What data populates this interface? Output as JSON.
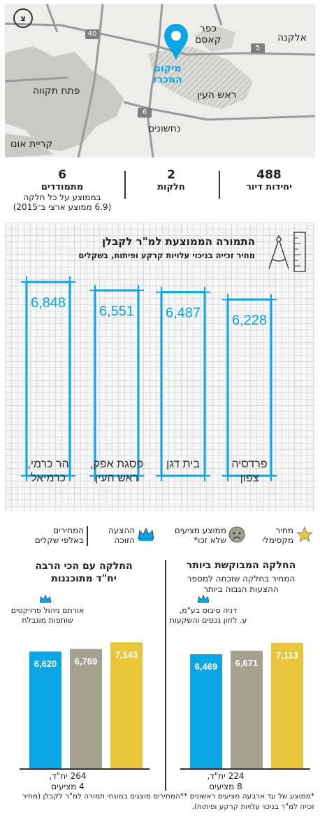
{
  "map": {
    "labels": {
      "kafr_qasim": "כפר\nקאסם",
      "elkana": "אלקנה",
      "sale_location": "מיקום\nהמכרז",
      "petah_tikva": "פתח תקווה",
      "rosh_haayin": "ראש העין",
      "nahshonim": "נחשונים",
      "kiryat_ono": "קריית אונו"
    },
    "roads": {
      "r40": "40",
      "r5": "5",
      "r6": "6"
    },
    "north_label": "צ",
    "colors": {
      "pin": "#0aa5e3",
      "urban": "#c9c9c5",
      "roads": "#9a9a9a"
    }
  },
  "stats": [
    {
      "value": "488",
      "label": "יחידות דיור",
      "sub": ""
    },
    {
      "value": "2",
      "label": "חלקות",
      "sub": ""
    },
    {
      "value": "6",
      "label": "מתמודדים",
      "sub": "בממוצע על כל חלקה",
      "sub2": "(6.9 ממוצע ארצי ב־2015)"
    }
  ],
  "top_chart_title": "התמורה הממוצעת למ\"ר לקבלן",
  "top_chart_subtitle": "מחיר זכייה בניכוי עלויות קרקע ופיתוח, בשקלים",
  "chart_data": [
    {
      "type": "bar",
      "title": "התמורה הממוצעת למ\"ר לקבלן",
      "subtitle": "מחיר זכייה בניכוי עלויות קרקע ופיתוח, בשקלים",
      "categories": [
        "פרדסיה\nצפון",
        "בית דגן",
        "פסגת אפק,\nראש העין",
        "הר כרמי,\nכרמיאל"
      ],
      "values": [
        6228,
        6487,
        6551,
        6848
      ],
      "value_labels": [
        "6,228",
        "6,487",
        "6,551",
        "6,848"
      ],
      "ylim": [
        0,
        6848
      ],
      "color": "#0aa5e3",
      "grid": true
    },
    {
      "type": "bar",
      "title": "החלקה המבוקשת ביותר",
      "subtitle": "המחיר בחלקה שזכתה למספר\nההצעות הגבוה ביותר",
      "categories": [
        "מחיר מקסימלי",
        "ממוצע מצעים שלא זכו",
        "ההצעה הזוכה"
      ],
      "values": [
        7113,
        6671,
        6469
      ],
      "value_labels": [
        "7,113",
        "6,671",
        "6,469"
      ],
      "ylim": [
        0,
        7143
      ],
      "winner_note": "דניה סיבוס בע\"מ,\nע. לזזון נכסים והשקעות",
      "footer": "224 יח\"ד,\n8 מציעים"
    },
    {
      "type": "bar",
      "title": "החלקה עם הכי הרבה\nיח\"ד מתוכננות",
      "categories": [
        "מחיר מקסימלי",
        "ממוצע מצעים שלא זכו",
        "ההצעה הזוכה"
      ],
      "values": [
        7143,
        6769,
        6620
      ],
      "value_labels": [
        "7,143",
        "6,769",
        "6,620"
      ],
      "ylim": [
        0,
        7143
      ],
      "winner_note": "אורתם ניהול פרויקטים\nשותפות מוגבלת",
      "footer": "264 יח\"ד,\n4 מציעים"
    }
  ],
  "legend": {
    "max_price": "מחיר\nמקסימלי",
    "avg_losers": "ממוצע מציעים\nשלא זכו*",
    "winning_bid": "ההצעה\nהזוכה",
    "prices_note": "המחירים\nבאלפי שקלים",
    "colors": {
      "max": "#e8c53a",
      "avg": "#a5a190",
      "win": "#0aa5e3"
    }
  },
  "footnote": "*ממוצע של עד ארבעה מציעים ראשונים **המחירים מוצגים במונחי תמורה למ\"ר לקבלן (מחיר זכייה למ\"ר בניכוי עלויות קרקע ופיתוח)."
}
